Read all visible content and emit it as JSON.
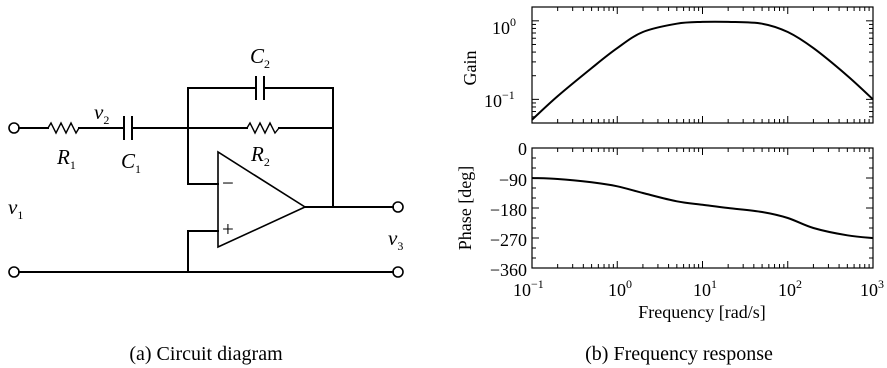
{
  "circuit": {
    "caption": "(a) Circuit diagram",
    "labels": {
      "v1": {
        "main": "v",
        "sub": "1"
      },
      "v2": {
        "main": "v",
        "sub": "2"
      },
      "v3": {
        "main": "v",
        "sub": "3"
      },
      "R1": {
        "main": "R",
        "sub": "1"
      },
      "R2": {
        "main": "R",
        "sub": "2"
      },
      "C1": {
        "main": "C",
        "sub": "1"
      },
      "C2": {
        "main": "C",
        "sub": "2"
      }
    },
    "opamp": {
      "minus": "−",
      "plus": "+"
    }
  },
  "bode": {
    "caption": "(b) Frequency response",
    "xlabel": "Frequency [rad/s]",
    "gain_ylabel": "Gain",
    "phase_ylabel": "Phase [deg]",
    "x_ticks": [
      {
        "base": "10",
        "exp": "−1"
      },
      {
        "base": "10",
        "exp": "0"
      },
      {
        "base": "10",
        "exp": "1"
      },
      {
        "base": "10",
        "exp": "2"
      },
      {
        "base": "10",
        "exp": "3"
      }
    ],
    "gain_ticks": [
      {
        "base": "10",
        "exp": "0"
      },
      {
        "base": "10",
        "exp": "−1"
      }
    ],
    "phase_ticks": [
      "0",
      "−90",
      "−180",
      "−270",
      "−360"
    ]
  },
  "chart_data": [
    {
      "type": "line",
      "xscale": "log",
      "yscale": "log",
      "xlim": [
        0.1,
        1000
      ],
      "ylim": [
        0.05,
        1.5
      ],
      "x": [
        0.1,
        0.2,
        0.5,
        1,
        2,
        5,
        10,
        20,
        50,
        100,
        200,
        500,
        1000
      ],
      "y": [
        0.055,
        0.11,
        0.25,
        0.45,
        0.72,
        0.92,
        0.97,
        0.97,
        0.92,
        0.72,
        0.45,
        0.2,
        0.1
      ],
      "ylabel": "Gain",
      "grid": false
    },
    {
      "type": "line",
      "xscale": "log",
      "xlim": [
        0.1,
        1000
      ],
      "ylim": [
        -360,
        0
      ],
      "x": [
        0.1,
        0.2,
        0.5,
        1,
        2,
        5,
        10,
        20,
        50,
        100,
        200,
        500,
        1000
      ],
      "y": [
        -90,
        -93,
        -103,
        -115,
        -135,
        -160,
        -170,
        -180,
        -192,
        -210,
        -240,
        -262,
        -270
      ],
      "xlabel": "Frequency [rad/s]",
      "ylabel": "Phase [deg]",
      "grid": false
    }
  ]
}
